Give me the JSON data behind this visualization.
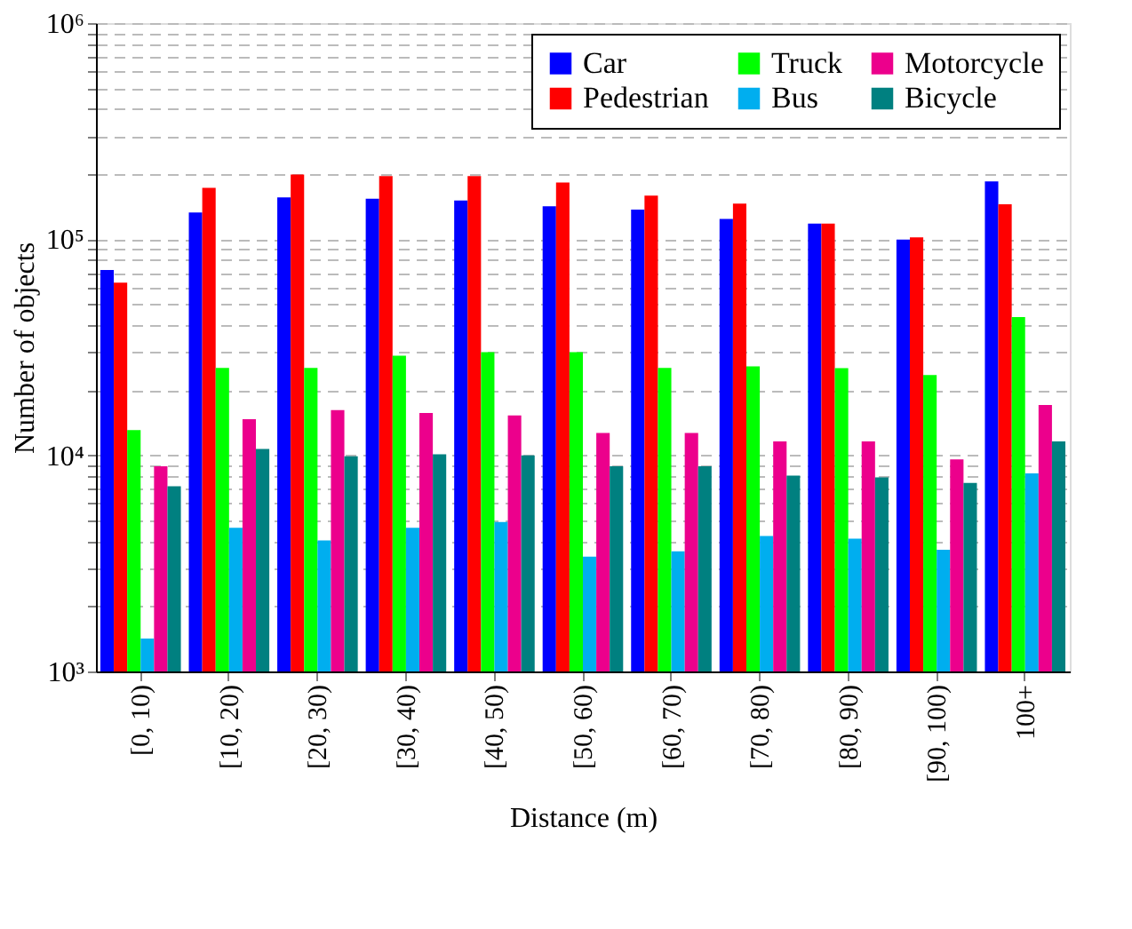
{
  "chart_data": {
    "type": "bar",
    "xlabel": "Distance (m)",
    "ylabel": "Number of objects",
    "categories": [
      "[0, 10)",
      "[10, 20)",
      "[20, 30)",
      "[30, 40)",
      "[40, 50)",
      "[50, 60)",
      "[60, 70)",
      "[70, 80)",
      "[80, 90)",
      "[90, 100)",
      "100+"
    ],
    "series": [
      {
        "name": "Car",
        "color": "#0000ff",
        "values": [
          72000,
          133000,
          156000,
          154000,
          151000,
          142000,
          137000,
          124000,
          118000,
          99500,
          185000
        ]
      },
      {
        "name": "Pedestrian",
        "color": "#ff0000",
        "values": [
          63000,
          173000,
          199000,
          196000,
          196000,
          183000,
          159000,
          146000,
          118000,
          102000,
          145000
        ]
      },
      {
        "name": "Truck",
        "color": "#00ff00",
        "values": [
          13100,
          25400,
          25400,
          28900,
          30000,
          30000,
          25400,
          25800,
          25300,
          23500,
          43600
        ]
      },
      {
        "name": "Bus",
        "color": "#00aeef",
        "values": [
          1420,
          4620,
          4040,
          4620,
          4910,
          3400,
          3600,
          4230,
          4120,
          3660,
          8250
        ]
      },
      {
        "name": "Motorcycle",
        "color": "#ec008c",
        "values": [
          8890,
          14700,
          16200,
          15700,
          15300,
          12700,
          12700,
          11600,
          11600,
          9570,
          17100
        ]
      },
      {
        "name": "Bicycle",
        "color": "#008080",
        "values": [
          7190,
          10700,
          9890,
          10100,
          10000,
          8890,
          8890,
          8050,
          7900,
          7460,
          11600
        ]
      }
    ],
    "log": "y",
    "ylim": [
      1000,
      1000000
    ],
    "yticks": [
      {
        "value": 1000,
        "label": "10³"
      },
      {
        "value": 2000,
        "label": null
      },
      {
        "value": 3000,
        "label": null
      },
      {
        "value": 4000,
        "label": null
      },
      {
        "value": 5000,
        "label": null
      },
      {
        "value": 6000,
        "label": null
      },
      {
        "value": 7000,
        "label": null
      },
      {
        "value": 8000,
        "label": null
      },
      {
        "value": 9000,
        "label": null
      },
      {
        "value": 10000,
        "label": "10⁴"
      },
      {
        "value": 20000,
        "label": null
      },
      {
        "value": 30000,
        "label": null
      },
      {
        "value": 40000,
        "label": null
      },
      {
        "value": 50000,
        "label": null
      },
      {
        "value": 60000,
        "label": null
      },
      {
        "value": 70000,
        "label": null
      },
      {
        "value": 80000,
        "label": null
      },
      {
        "value": 90000,
        "label": null
      },
      {
        "value": 100000,
        "label": "10⁵"
      },
      {
        "value": 200000,
        "label": null
      },
      {
        "value": 300000,
        "label": null
      },
      {
        "value": 400000,
        "label": null
      },
      {
        "value": 500000,
        "label": null
      },
      {
        "value": 600000,
        "label": null
      },
      {
        "value": 700000,
        "label": null
      },
      {
        "value": 800000,
        "label": null
      },
      {
        "value": 900000,
        "label": null
      },
      {
        "value": 1000000,
        "label": "10⁶"
      }
    ],
    "grid": "y",
    "legend": "top right"
  }
}
